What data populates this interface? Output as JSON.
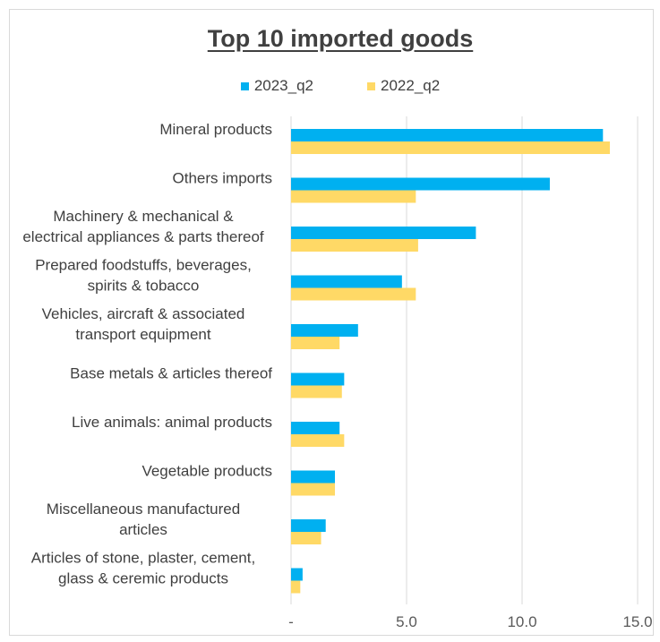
{
  "chart_data": {
    "type": "bar",
    "orientation": "horizontal",
    "title": "Top 10 imported goods",
    "categories": [
      "Mineral products",
      "Others imports",
      "Machinery & mechanical &\nelectrical appliances & parts thereof",
      "Prepared foodstuffs, beverages,\nspirits & tobacco",
      "Vehicles, aircraft & associated\ntransport equipment",
      "Base metals & articles thereof",
      "Live animals: animal products",
      "Vegetable products",
      "Miscellaneous manufactured\narticles",
      "Articles of stone, plaster, cement,\nglass & ceremic products"
    ],
    "series": [
      {
        "name": "2023_q2",
        "color": "#00B0F0",
        "values": [
          13.5,
          11.2,
          8.0,
          4.8,
          2.9,
          2.3,
          2.1,
          1.9,
          1.5,
          0.5
        ]
      },
      {
        "name": "2022_q2",
        "color": "#FFD966",
        "values": [
          13.8,
          5.4,
          5.5,
          5.4,
          2.1,
          2.2,
          2.3,
          1.9,
          1.3,
          0.4
        ]
      }
    ],
    "xlim": [
      0,
      15
    ],
    "xticks": [
      0,
      5,
      10,
      15
    ],
    "xtick_labels": [
      "-",
      "5.0",
      "10.0",
      "15.0"
    ],
    "grid": true,
    "legend_position": "top"
  }
}
